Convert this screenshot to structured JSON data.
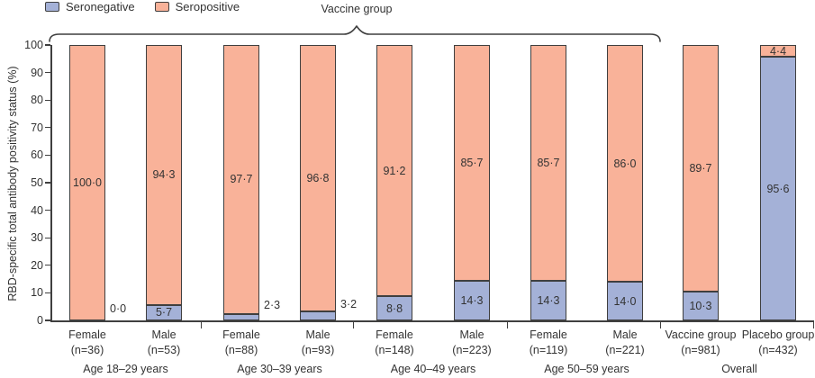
{
  "figure": {
    "brace_label": "Vaccine group",
    "ylabel": "RBD-specific total antibody positivity status (%)"
  },
  "colors": {
    "seronegative": "#a4b1d7",
    "seropositive": "#f9b299",
    "border": "#3f3f3f",
    "axis": "#3f3f3f",
    "text": "#333333"
  },
  "legend": {
    "items": [
      {
        "label": "Seronegative",
        "color": "#a4b1d7"
      },
      {
        "label": "Seropositive",
        "color": "#f9b299"
      }
    ]
  },
  "chart_data": {
    "type": "bar",
    "stacked": true,
    "orientation": "vertical",
    "title": "",
    "xlabel": "",
    "ylabel": "RBD-specific total antibody positivity status (%)",
    "ylim": [
      0,
      100
    ],
    "yticks": [
      0,
      10,
      20,
      30,
      40,
      50,
      60,
      70,
      80,
      90,
      100
    ],
    "series_names": [
      "Seronegative",
      "Seropositive"
    ],
    "legend_position": "top-left",
    "brace": {
      "label": "Vaccine group",
      "covers_groups": [
        "Age 18–29 years",
        "Age 30–39 years",
        "Age 40–49 years",
        "Age 50–59 years"
      ]
    },
    "groups": [
      {
        "label": "Age 18–29 years",
        "bars": [
          {
            "name": "Female",
            "n_label": "(n=36)",
            "seronegative": 0.0,
            "seropositive": 100.0,
            "seronegative_label": "0·0",
            "seropositive_label": "100·0",
            "seronegative_label_placement": "outside-right"
          },
          {
            "name": "Male",
            "n_label": "(n=53)",
            "seronegative": 5.7,
            "seropositive": 94.3,
            "seronegative_label": "5·7",
            "seropositive_label": "94·3",
            "seronegative_label_placement": "inside"
          }
        ]
      },
      {
        "label": "Age 30–39 years",
        "bars": [
          {
            "name": "Female",
            "n_label": "(n=88)",
            "seronegative": 2.3,
            "seropositive": 97.7,
            "seronegative_label": "2·3",
            "seropositive_label": "97·7",
            "seronegative_label_placement": "outside-right"
          },
          {
            "name": "Male",
            "n_label": "(n=93)",
            "seronegative": 3.2,
            "seropositive": 96.8,
            "seronegative_label": "3·2",
            "seropositive_label": "96·8",
            "seronegative_label_placement": "outside-right"
          }
        ]
      },
      {
        "label": "Age 40–49 years",
        "bars": [
          {
            "name": "Female",
            "n_label": "(n=148)",
            "seronegative": 8.8,
            "seropositive": 91.2,
            "seronegative_label": "8·8",
            "seropositive_label": "91·2",
            "seronegative_label_placement": "inside"
          },
          {
            "name": "Male",
            "n_label": "(n=223)",
            "seronegative": 14.3,
            "seropositive": 85.7,
            "seronegative_label": "14·3",
            "seropositive_label": "85·7",
            "seronegative_label_placement": "inside"
          }
        ]
      },
      {
        "label": "Age 50–59 years",
        "bars": [
          {
            "name": "Female",
            "n_label": "(n=119)",
            "seronegative": 14.3,
            "seropositive": 85.7,
            "seronegative_label": "14·3",
            "seropositive_label": "85·7",
            "seronegative_label_placement": "inside"
          },
          {
            "name": "Male",
            "n_label": "(n=221)",
            "seronegative": 14.0,
            "seropositive": 86.0,
            "seronegative_label": "14·0",
            "seropositive_label": "86·0",
            "seronegative_label_placement": "inside"
          }
        ]
      },
      {
        "label": "Overall",
        "bars": [
          {
            "name": "Vaccine group",
            "n_label": "(n=981)",
            "seronegative": 10.3,
            "seropositive": 89.7,
            "seronegative_label": "10·3",
            "seropositive_label": "89·7",
            "seronegative_label_placement": "inside"
          },
          {
            "name": "Placebo group",
            "n_label": "(n=432)",
            "seronegative": 95.6,
            "seropositive": 4.4,
            "seronegative_label": "95·6",
            "seropositive_label": "4·4",
            "seronegative_label_placement": "inside"
          }
        ]
      }
    ]
  }
}
